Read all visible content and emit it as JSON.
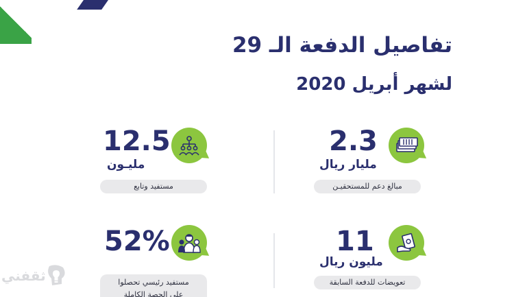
{
  "header": {
    "title": "تفاصيل الدفعة الـ 29",
    "subtitle": "لشهر أبريل 2020"
  },
  "stats": {
    "support_amount": {
      "value": "2.3",
      "unit": "مليار ريال",
      "label": "مبالغ دعم للمستحقيـن",
      "icon": "money-stack-icon"
    },
    "beneficiaries": {
      "value": "12.5",
      "unit": "مليـون",
      "label": "مستفيد وتابع",
      "icon": "people-network-icon"
    },
    "compensation": {
      "value": "11",
      "unit": "مليون ريال",
      "label": "تعويضات للدفعة السابقة",
      "icon": "hand-money-icon"
    },
    "full_share": {
      "value": "52%",
      "unit": "",
      "label": "مستفيد رئيسي تحصلوا",
      "label_line2": "على الحصة الكاملة",
      "icon": "family-icon"
    }
  },
  "watermark": {
    "text": "ثقفني",
    "icon": "lightbulb-icon"
  },
  "colors": {
    "navy": "#2a2f6e",
    "green": "#8cc63f",
    "corner_green": "#3aa346",
    "pill": "#e9e9eb"
  }
}
